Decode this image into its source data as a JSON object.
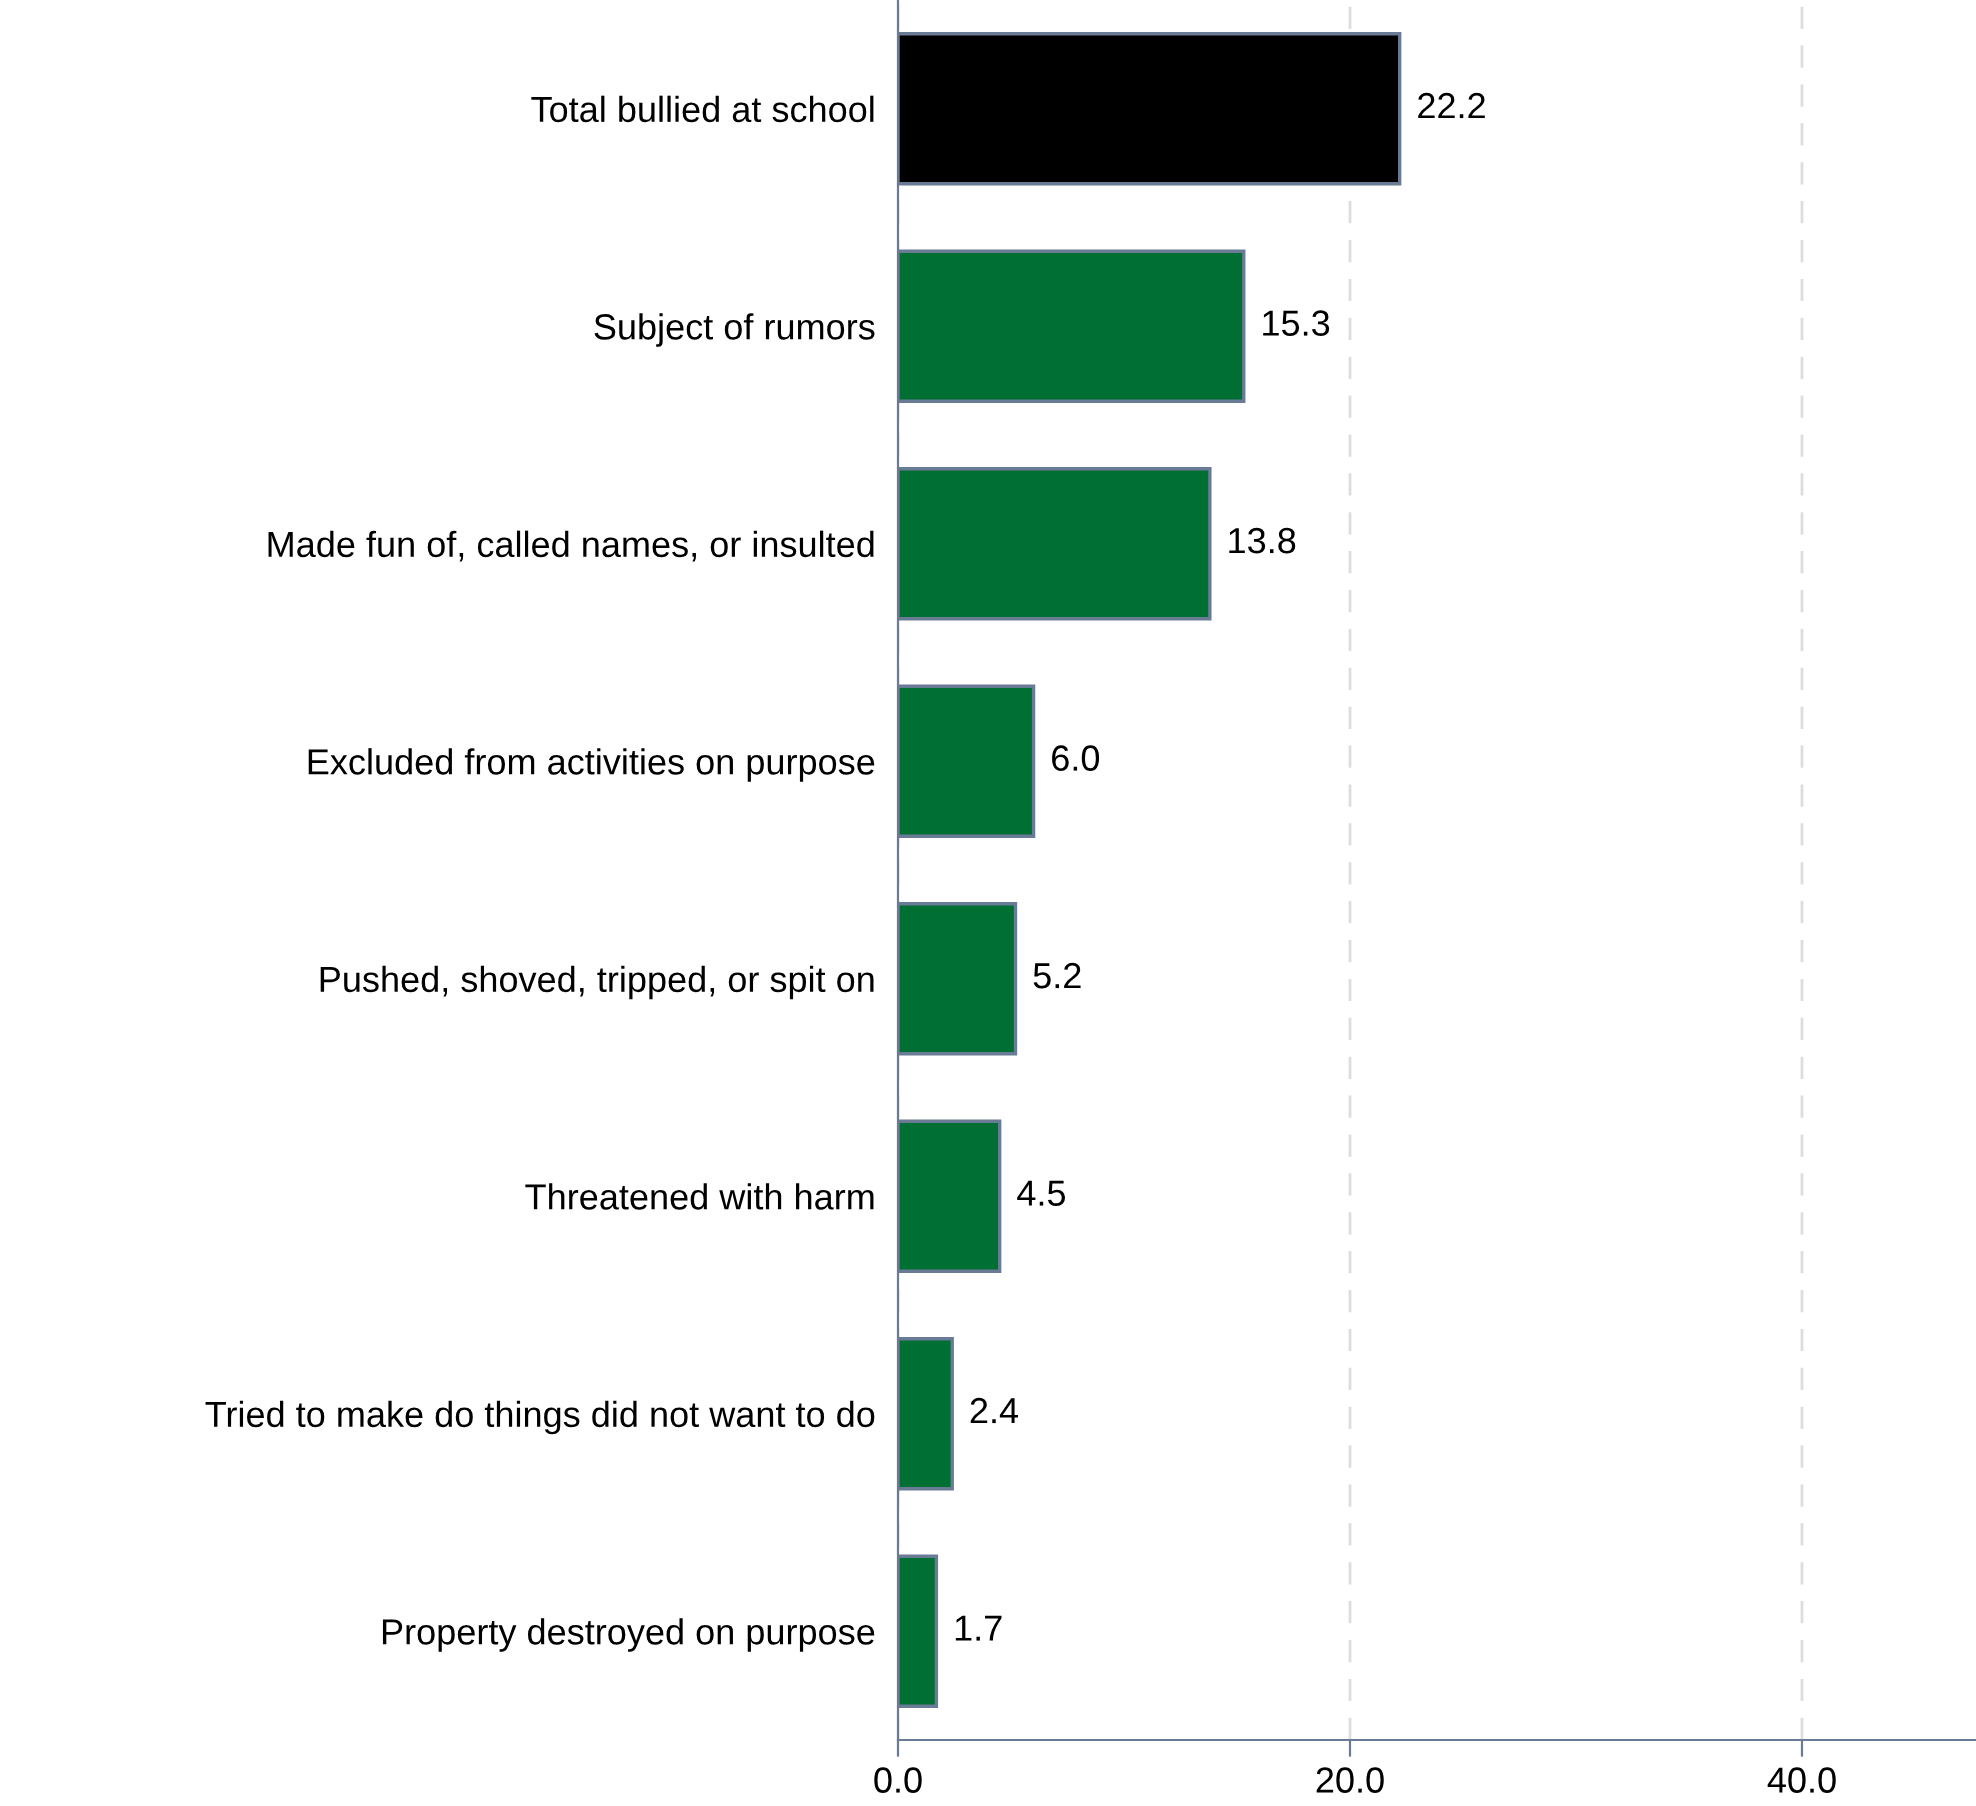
{
  "chart_data": {
    "type": "bar",
    "orientation": "horizontal",
    "categories": [
      "Total bullied at school",
      "Subject of rumors",
      "Made fun of, called names, or insulted",
      "Excluded from activities on purpose",
      "Pushed, shoved, tripped, or spit on",
      "Threatened with harm",
      "Tried to make do things did not want to do",
      "Property destroyed on purpose"
    ],
    "values": [
      22.2,
      15.3,
      13.8,
      6.0,
      5.2,
      4.5,
      2.4,
      1.7
    ],
    "value_labels": [
      "22.2",
      "15.3",
      "13.8",
      "6.0",
      "5.2",
      "4.5",
      "2.4",
      "1.7"
    ],
    "colors": [
      "#000000",
      "#006f33",
      "#006f33",
      "#006f33",
      "#006f33",
      "#006f33",
      "#006f33",
      "#006f33"
    ],
    "xlim": [
      0,
      47.7
    ],
    "xticks": [
      {
        "value": 0,
        "label": "0.0"
      },
      {
        "value": 20,
        "label": "20.0"
      },
      {
        "value": 40,
        "label": "40.0"
      }
    ],
    "grid": "x",
    "legend": false
  }
}
